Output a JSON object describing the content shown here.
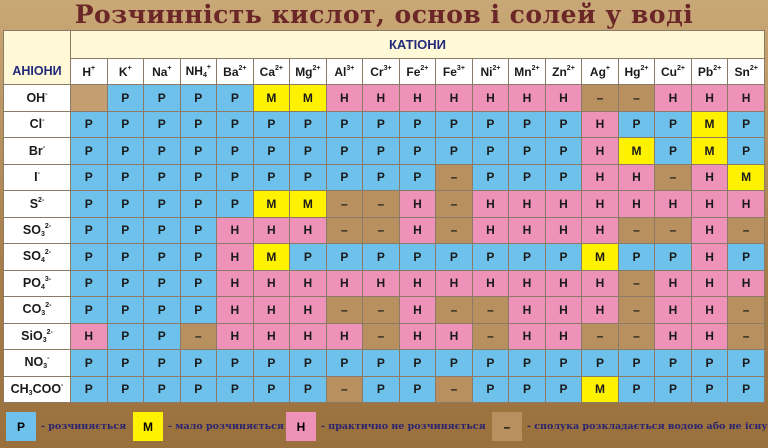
{
  "title": "Розчинність кислот, основ  і солей у воді",
  "chart_data": {
    "type": "table",
    "title": "Розчинність кислот, основ  і солей у воді",
    "column_group_label": "КАТІОНИ",
    "row_header_label": "АНІОНИ",
    "cations": [
      {
        "b": "H",
        "sub": "",
        "sup": "+"
      },
      {
        "b": "K",
        "sub": "",
        "sup": "+"
      },
      {
        "b": "Na",
        "sub": "",
        "sup": "+"
      },
      {
        "b": "NH",
        "sub": "4",
        "sup": "+"
      },
      {
        "b": "Ba",
        "sub": "",
        "sup": "2+"
      },
      {
        "b": "Ca",
        "sub": "",
        "sup": "2+"
      },
      {
        "b": "Mg",
        "sub": "",
        "sup": "2+"
      },
      {
        "b": "Al",
        "sub": "",
        "sup": "3+"
      },
      {
        "b": "Cr",
        "sub": "",
        "sup": "3+"
      },
      {
        "b": "Fe",
        "sub": "",
        "sup": "2+"
      },
      {
        "b": "Fe",
        "sub": "",
        "sup": "3+"
      },
      {
        "b": "Ni",
        "sub": "",
        "sup": "2+"
      },
      {
        "b": "Mn",
        "sub": "",
        "sup": "2+"
      },
      {
        "b": "Zn",
        "sub": "",
        "sup": "2+"
      },
      {
        "b": "Ag",
        "sub": "",
        "sup": "+"
      },
      {
        "b": "Hg",
        "sub": "",
        "sup": "2+"
      },
      {
        "b": "Cu",
        "sub": "",
        "sup": "2+"
      },
      {
        "b": "Pb",
        "sub": "",
        "sup": "2+"
      },
      {
        "b": "Sn",
        "sub": "",
        "sup": "2+"
      }
    ],
    "rows": [
      {
        "anion": {
          "b": "OH",
          "sub": "",
          "sup": "-"
        },
        "values": [
          "",
          "Р",
          "Р",
          "Р",
          "Р",
          "М",
          "М",
          "Н",
          "Н",
          "Н",
          "Н",
          "Н",
          "Н",
          "Н",
          "–",
          "–",
          "Н",
          "Н",
          "Н"
        ]
      },
      {
        "anion": {
          "b": "Cl",
          "sub": "",
          "sup": "-"
        },
        "values": [
          "Р",
          "Р",
          "Р",
          "Р",
          "Р",
          "Р",
          "Р",
          "Р",
          "Р",
          "Р",
          "Р",
          "Р",
          "Р",
          "Р",
          "Н",
          "Р",
          "Р",
          "М",
          "Р"
        ]
      },
      {
        "anion": {
          "b": "Br",
          "sub": "",
          "sup": "-"
        },
        "values": [
          "Р",
          "Р",
          "Р",
          "Р",
          "Р",
          "Р",
          "Р",
          "Р",
          "Р",
          "Р",
          "Р",
          "Р",
          "Р",
          "Р",
          "Н",
          "М",
          "Р",
          "М",
          "Р"
        ]
      },
      {
        "anion": {
          "b": "I",
          "sub": "",
          "sup": "-"
        },
        "values": [
          "Р",
          "Р",
          "Р",
          "Р",
          "Р",
          "Р",
          "Р",
          "Р",
          "Р",
          "Р",
          "–",
          "Р",
          "Р",
          "Р",
          "Н",
          "Н",
          "–",
          "Н",
          "М"
        ]
      },
      {
        "anion": {
          "b": "S",
          "sub": "",
          "sup": "2-"
        },
        "values": [
          "Р",
          "Р",
          "Р",
          "Р",
          "Р",
          "М",
          "М",
          "–",
          "–",
          "Н",
          "–",
          "Н",
          "Н",
          "Н",
          "Н",
          "Н",
          "Н",
          "Н",
          "Н"
        ]
      },
      {
        "anion": {
          "b": "SO",
          "sub": "3",
          "sup": "2-"
        },
        "values": [
          "Р",
          "Р",
          "Р",
          "Р",
          "Н",
          "Н",
          "Н",
          "–",
          "–",
          "Н",
          "–",
          "Н",
          "Н",
          "Н",
          "Н",
          "–",
          "–",
          "Н",
          "–"
        ]
      },
      {
        "anion": {
          "b": "SO",
          "sub": "4",
          "sup": "2-"
        },
        "values": [
          "Р",
          "Р",
          "Р",
          "Р",
          "Н",
          "М",
          "Р",
          "Р",
          "Р",
          "Р",
          "Р",
          "Р",
          "Р",
          "Р",
          "М",
          "Р",
          "Р",
          "Н",
          "Р"
        ]
      },
      {
        "anion": {
          "b": "PO",
          "sub": "4",
          "sup": "3-"
        },
        "values": [
          "Р",
          "Р",
          "Р",
          "Р",
          "Н",
          "Н",
          "Н",
          "Н",
          "Н",
          "Н",
          "Н",
          "Н",
          "Н",
          "Н",
          "Н",
          "–",
          "Н",
          "Н",
          "Н"
        ]
      },
      {
        "anion": {
          "b": "CO",
          "sub": "3",
          "sup": "2-"
        },
        "values": [
          "Р",
          "Р",
          "Р",
          "Р",
          "Н",
          "Н",
          "Н",
          "–",
          "–",
          "Н",
          "–",
          "–",
          "Н",
          "Н",
          "Н",
          "–",
          "Н",
          "Н",
          "–"
        ]
      },
      {
        "anion": {
          "b": "SiO",
          "sub": "3",
          "sup": "2-"
        },
        "values": [
          "Н",
          "Р",
          "Р",
          "–",
          "Н",
          "Н",
          "Н",
          "Н",
          "–",
          "Н",
          "Н",
          "–",
          "Н",
          "Н",
          "–",
          "–",
          "Н",
          "Н",
          "–"
        ]
      },
      {
        "anion": {
          "b": "NO",
          "sub": "3",
          "sup": "-"
        },
        "values": [
          "Р",
          "Р",
          "Р",
          "Р",
          "Р",
          "Р",
          "Р",
          "Р",
          "Р",
          "Р",
          "Р",
          "Р",
          "Р",
          "Р",
          "Р",
          "Р",
          "Р",
          "Р",
          "Р"
        ]
      },
      {
        "anion": {
          "b": "CH",
          "sub": "3",
          "sup": "",
          "b2": "COO",
          "sup2": "-"
        },
        "values": [
          "Р",
          "Р",
          "Р",
          "Р",
          "Р",
          "Р",
          "Р",
          "–",
          "Р",
          "Р",
          "–",
          "Р",
          "Р",
          "Р",
          "М",
          "Р",
          "Р",
          "Р",
          "Р"
        ]
      }
    ],
    "legend": [
      {
        "code": "Р",
        "label": "- розчиняється",
        "color": "#6ec1ea"
      },
      {
        "code": "М",
        "label": "- мало розчиняється",
        "color": "#fff200"
      },
      {
        "code": "Н",
        "label": "- практично не розчиняється",
        "color": "#ef92ba"
      },
      {
        "code": "–",
        "label": "- сполука розкладається водою або не існує",
        "color": "#b88f5e"
      }
    ]
  }
}
